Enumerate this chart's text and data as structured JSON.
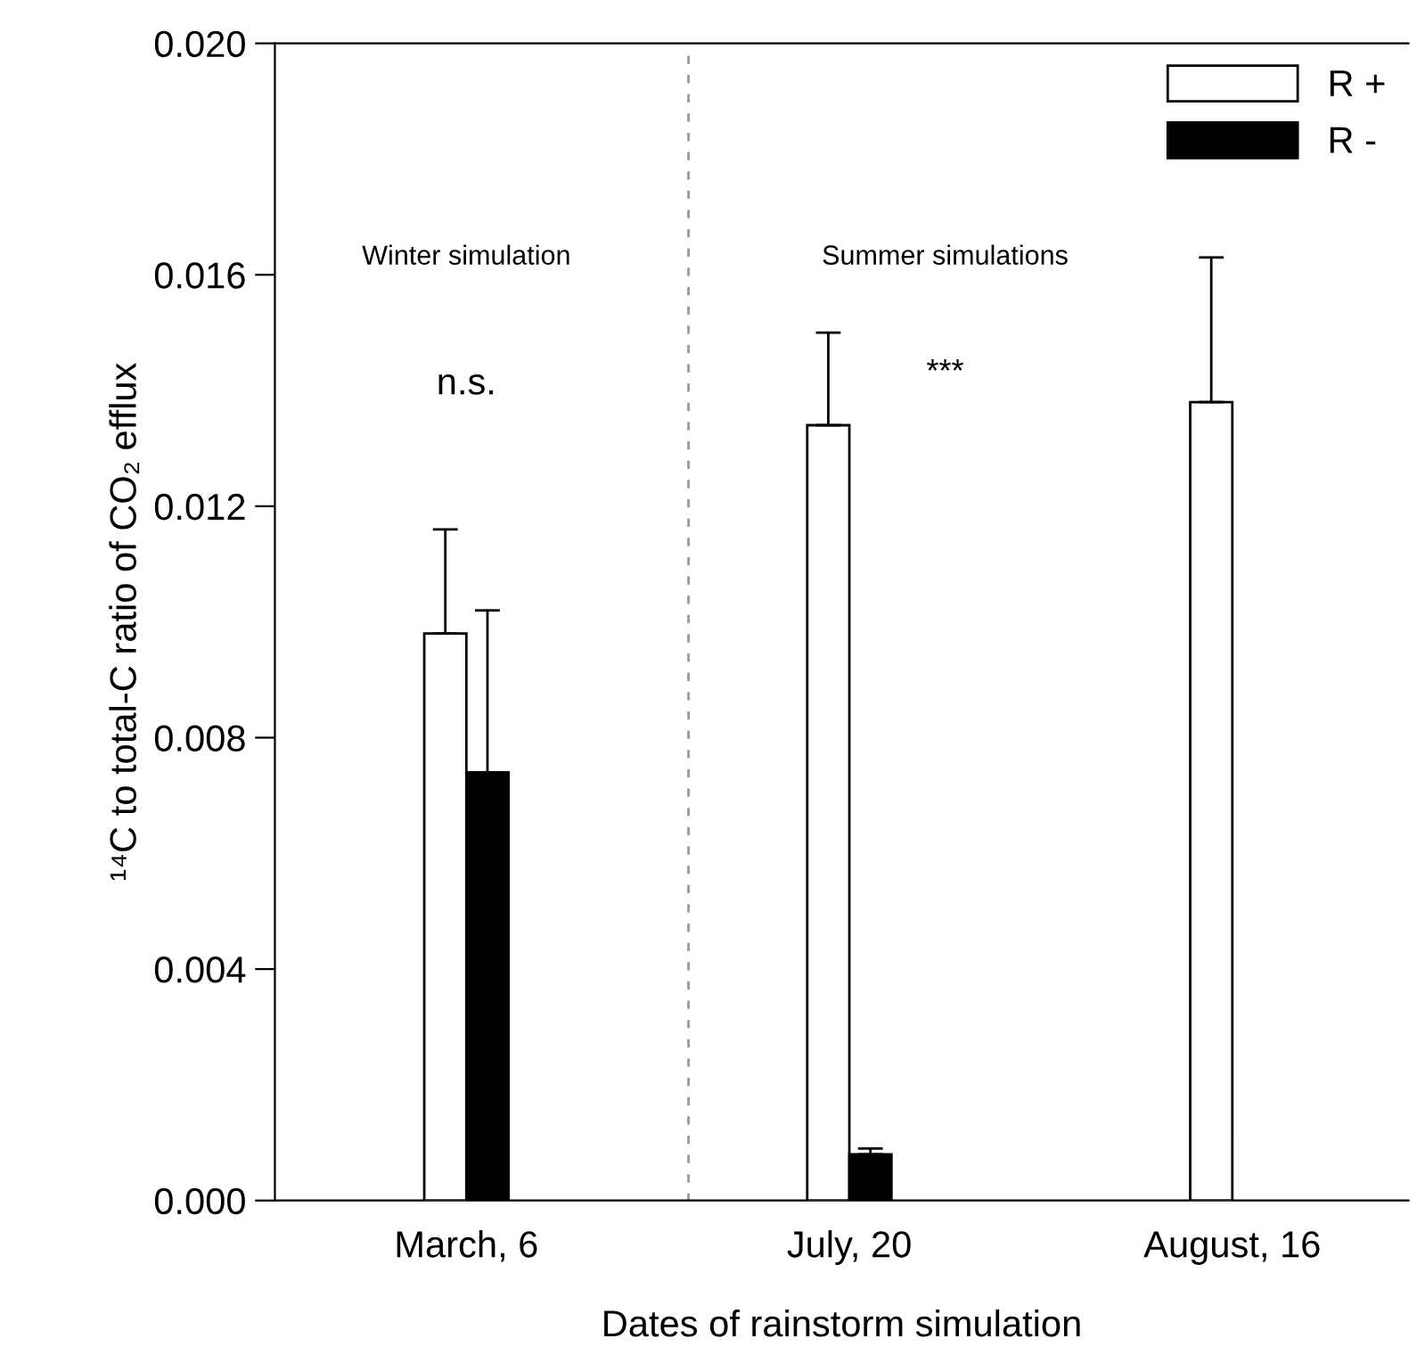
{
  "chart_data": {
    "type": "bar",
    "xlabel": "Dates of rainstorm simulation",
    "ylabel": "¹⁴C to total-C ratio of CO₂ efflux",
    "categories": [
      "March, 6",
      "July, 20",
      "August, 16"
    ],
    "series": [
      {
        "name": "R +",
        "color": "#ffffff",
        "values": [
          0.0098,
          0.0134,
          0.0138
        ],
        "errors": [
          [
            0.0098,
            0.0116
          ],
          [
            0.0134,
            0.015
          ],
          [
            0.0138,
            0.0163
          ]
        ]
      },
      {
        "name": "R -",
        "color": "#000000",
        "values": [
          0.0074,
          0.0008,
          null
        ],
        "errors": [
          [
            0.0074,
            0.0102
          ],
          [
            0.0008,
            0.0009
          ],
          null
        ]
      }
    ],
    "ylim": [
      0,
      0.02
    ],
    "yticks": [
      {
        "value": 0,
        "label": "0.000"
      },
      {
        "value": 0.004,
        "label": "0.004"
      },
      {
        "value": 0.008,
        "label": "0.008"
      },
      {
        "value": 0.012,
        "label": "0.012"
      },
      {
        "value": 0.016,
        "label": "0.016"
      },
      {
        "value": 0.02,
        "label": "0.020"
      }
    ],
    "annotations": [
      "Winter simulation",
      "Summer simulations",
      "n.s.",
      "***"
    ],
    "legend": "top right",
    "grid": false
  }
}
